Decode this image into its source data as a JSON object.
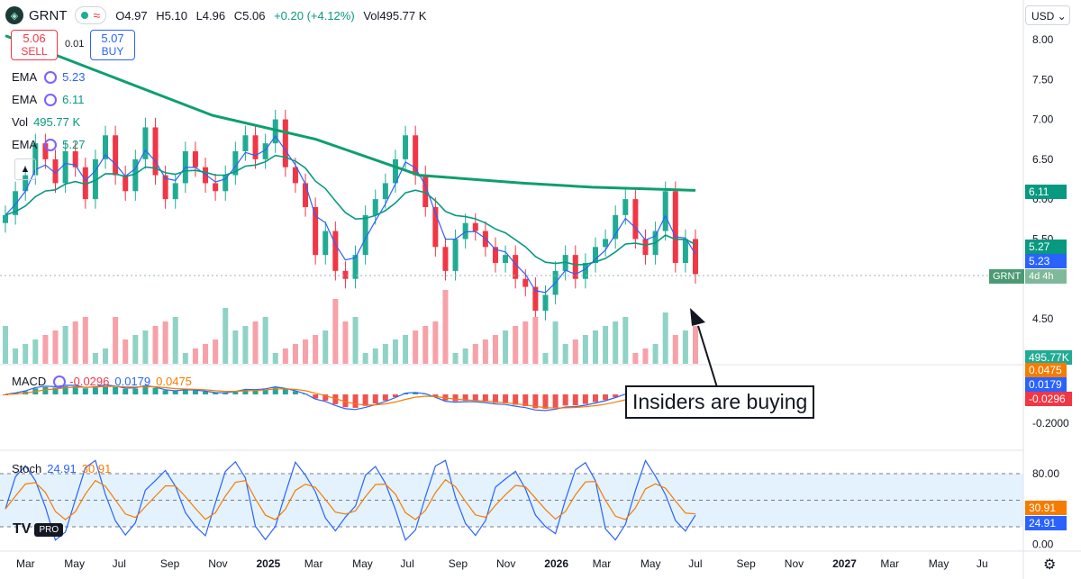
{
  "header": {
    "symbol": "GRNT",
    "open": "O4.97",
    "high": "H5.10",
    "low": "L4.96",
    "close": "C5.06",
    "change": "+0.20 (+4.12%)",
    "volume": "Vol495.77 K"
  },
  "trade": {
    "sell_price": "5.06",
    "sell_label": "SELL",
    "spread": "0.01",
    "buy_price": "5.07",
    "buy_label": "BUY"
  },
  "indicators": [
    {
      "name": "EMA",
      "value": "5.23",
      "color": "#2962ff"
    },
    {
      "name": "EMA",
      "value": "6.11",
      "color": "#089981"
    },
    {
      "name": "Vol",
      "value": "495.77 K",
      "color": "#089981"
    },
    {
      "name": "EMA",
      "value": "5.27",
      "color": "#089981"
    }
  ],
  "macd_legend": {
    "name": "MACD",
    "v1": "-0.0296",
    "v2": "0.0179",
    "v3": "0.0475"
  },
  "stoch_legend": {
    "name": "Stoch",
    "v1": "24.91",
    "v2": "30.91"
  },
  "currency": "USD",
  "price_tags": {
    "ema_long": "6.11",
    "ema_mid": "5.27",
    "ema_short": "5.23",
    "symbol_tag": "GRNT",
    "symbol_time": "4d 4h",
    "volume": "495.77K",
    "macd_signal": "0.0475",
    "macd_line": "0.0179",
    "macd_hist": "-0.0296",
    "stoch_d": "30.91",
    "stoch_k": "24.91"
  },
  "annotation": "Insiders are buying",
  "colors": {
    "up": "#22ab94",
    "down": "#f23645",
    "ema_short": "#2962ff",
    "ema_mid": "#089981",
    "ema_long": "#0e9f6e",
    "macd_signal": "#f57c00",
    "stoch_band": "#e3f2fd"
  },
  "chart_data": {
    "type": "candlestick",
    "price_axis": {
      "ticks": [
        "8.00",
        "7.50",
        "7.00",
        "6.50",
        "6.00",
        "5.50",
        "5.00",
        "4.50"
      ],
      "range": [
        4.0,
        8.2
      ]
    },
    "macd_axis": {
      "ticks": [
        "-0.2000"
      ]
    },
    "stoch_axis": {
      "ticks": [
        "80.00",
        "0.00"
      ],
      "levels": [
        80,
        50,
        20
      ]
    },
    "time_axis": [
      "Mar",
      "May",
      "Jul",
      "Sep",
      "Nov",
      "2025",
      "Mar",
      "May",
      "Jul",
      "Sep",
      "Nov",
      "2026",
      "Mar",
      "May",
      "Jul",
      "Sep",
      "Nov",
      "2027",
      "Mar",
      "May",
      "Ju"
    ],
    "last": {
      "open": 4.97,
      "high": 5.1,
      "low": 4.96,
      "close": 5.06,
      "volume": "495.77K"
    },
    "ema_long_path": [
      [
        0.0,
        8.05
      ],
      [
        0.15,
        7.55
      ],
      [
        0.3,
        7.05
      ],
      [
        0.45,
        6.75
      ],
      [
        0.6,
        6.3
      ],
      [
        0.75,
        6.2
      ],
      [
        0.85,
        6.15
      ],
      [
        1.0,
        6.11
      ]
    ],
    "candles_close": [
      5.8,
      6.1,
      6.3,
      6.7,
      6.5,
      6.2,
      6.6,
      6.4,
      6.0,
      6.5,
      6.8,
      6.3,
      6.1,
      6.5,
      6.9,
      6.3,
      6.0,
      6.2,
      6.6,
      6.4,
      6.2,
      6.1,
      6.3,
      6.6,
      6.8,
      6.5,
      6.7,
      7.0,
      6.4,
      6.2,
      5.9,
      5.3,
      5.6,
      5.1,
      5.0,
      5.3,
      5.8,
      6.0,
      6.2,
      6.5,
      6.8,
      6.3,
      5.9,
      5.4,
      5.1,
      5.5,
      5.7,
      5.6,
      5.4,
      5.2,
      5.3,
      5.0,
      4.9,
      4.6,
      4.8,
      5.1,
      5.3,
      5.0,
      5.2,
      5.4,
      5.5,
      5.8,
      6.0,
      5.5,
      5.3,
      5.6,
      6.1,
      5.2,
      5.5,
      5.06
    ]
  }
}
